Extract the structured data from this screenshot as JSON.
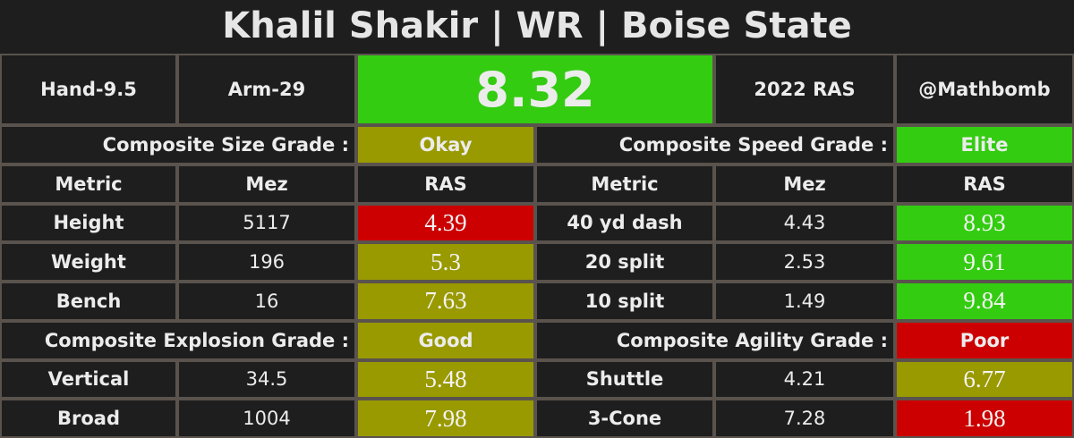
{
  "title": "Khalil Shakir | WR | Boise State",
  "header": {
    "hand": "Hand-9.5",
    "arm": "Arm-29",
    "score": "8.32",
    "score_color": "#33cc11",
    "year": "2022 RAS",
    "credit": "@Mathbomb"
  },
  "columns": [
    "Metric",
    "Mez",
    "RAS"
  ],
  "groups": [
    {
      "label": "Composite Size Grade :",
      "grade": "Okay",
      "grade_color": "#999900",
      "rows": [
        {
          "metric": "Height",
          "mez": "5117",
          "ras": "4.39",
          "color": "#cc0000"
        },
        {
          "metric": "Weight",
          "mez": "196",
          "ras": "5.3",
          "color": "#999900"
        },
        {
          "metric": "Bench",
          "mez": "16",
          "ras": "7.63",
          "color": "#999900"
        }
      ]
    },
    {
      "label": "Composite Speed Grade :",
      "grade": "Elite",
      "grade_color": "#33cc11",
      "rows": [
        {
          "metric": "40 yd dash",
          "mez": "4.43",
          "ras": "8.93",
          "color": "#33cc11"
        },
        {
          "metric": "20 split",
          "mez": "2.53",
          "ras": "9.61",
          "color": "#33cc11"
        },
        {
          "metric": "10 split",
          "mez": "1.49",
          "ras": "9.84",
          "color": "#33cc11"
        }
      ]
    },
    {
      "label": "Composite Explosion Grade :",
      "grade": "Good",
      "grade_color": "#999900",
      "rows": [
        {
          "metric": "Vertical",
          "mez": "34.5",
          "ras": "5.48",
          "color": "#999900"
        },
        {
          "metric": "Broad",
          "mez": "1004",
          "ras": "7.98",
          "color": "#999900"
        }
      ]
    },
    {
      "label": "Composite Agility Grade :",
      "grade": "Poor",
      "grade_color": "#cc0000",
      "rows": [
        {
          "metric": "Shuttle",
          "mez": "4.21",
          "ras": "6.77",
          "color": "#999900"
        },
        {
          "metric": "3-Cone",
          "mez": "7.28",
          "ras": "1.98",
          "color": "#cc0000"
        }
      ]
    }
  ]
}
